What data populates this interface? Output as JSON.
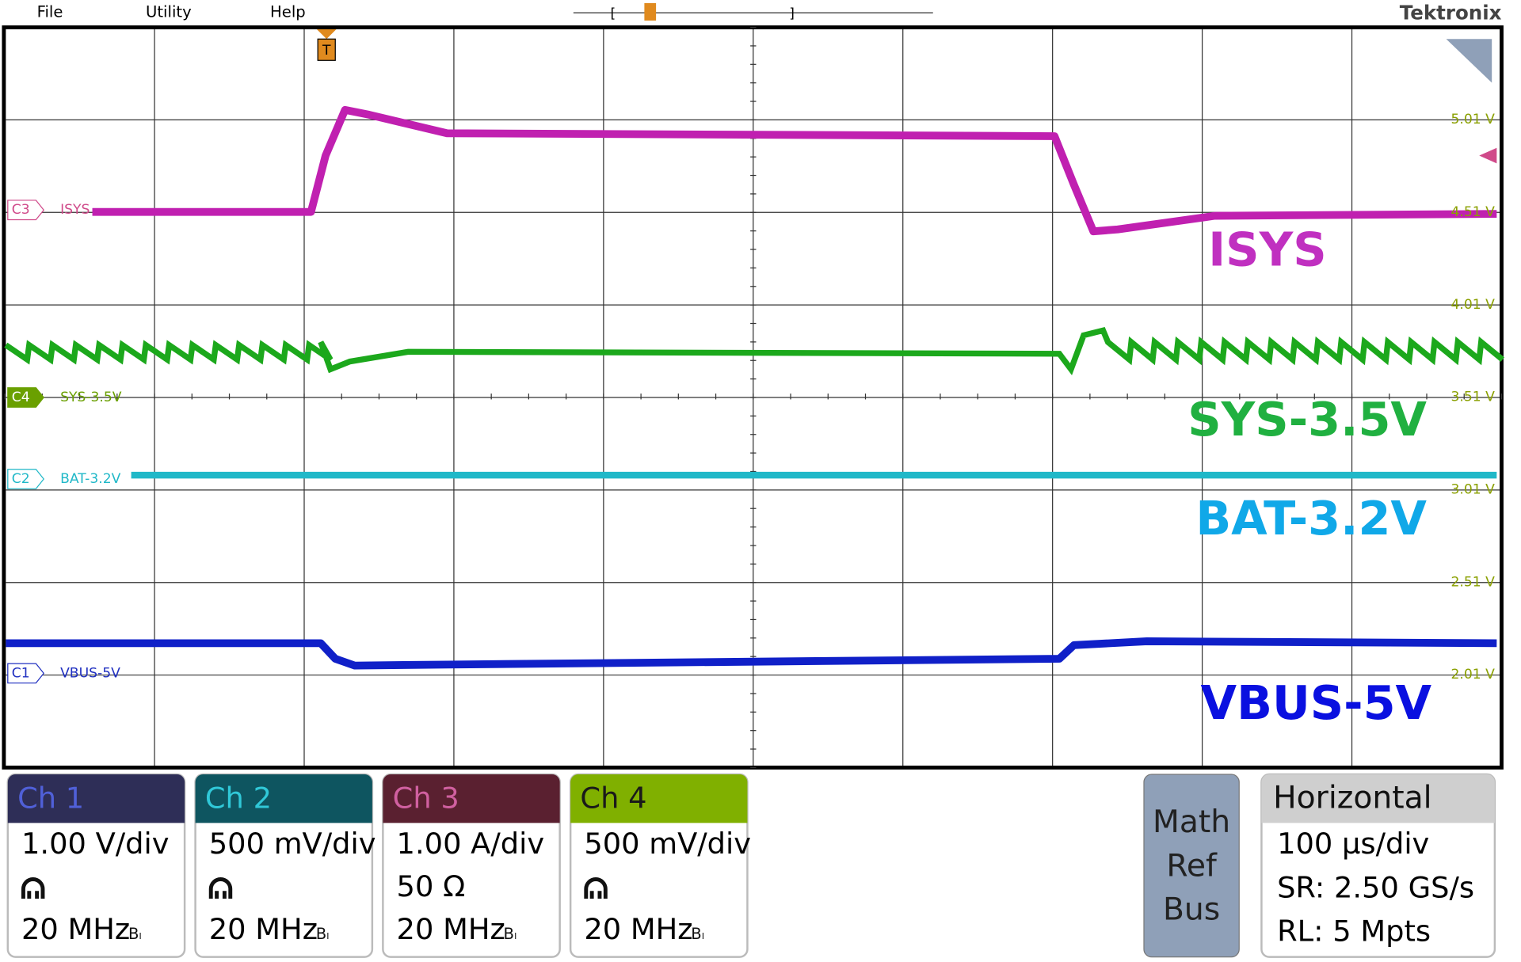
{
  "menu": [
    "File",
    "Utility",
    "Help"
  ],
  "brand": "Tektronix",
  "trigger_marker": "T",
  "scale_labels": [
    "5.01 V",
    "4.51 V",
    "4.01 V",
    "3.51 V",
    "3.01 V",
    "2.51 V",
    "2.01 V"
  ],
  "channel_labels": [
    {
      "tag": "C3",
      "name": "ISYS"
    },
    {
      "tag": "C4",
      "name": "SYS-3.5V"
    },
    {
      "tag": "C2",
      "name": "BAT-3.2V"
    },
    {
      "tag": "C1",
      "name": "VBUS-5V"
    }
  ],
  "trace_titles": [
    "ISYS",
    "SYS-3.5V",
    "BAT-3.2V",
    "VBUS-5V"
  ],
  "channels": [
    {
      "title": "Ch 1",
      "scale": "1.00 V/div",
      "bandwidth": "20 MHz"
    },
    {
      "title": "Ch 2",
      "scale": "500 mV/div",
      "bandwidth": "20 MHz"
    },
    {
      "title": "Ch 3",
      "scale": "1.00 A/div",
      "termination": "50 Ω",
      "bandwidth": "20 MHz"
    },
    {
      "title": "Ch 4",
      "scale": "500 mV/div",
      "bandwidth": "20 MHz"
    }
  ],
  "math_button": [
    "Math",
    "Ref",
    "Bus"
  ],
  "horizontal": {
    "title": "Horizontal",
    "lines": [
      "100 µs/div",
      "SR: 2.50 GS/s",
      "RL: 5 Mpts"
    ]
  }
}
